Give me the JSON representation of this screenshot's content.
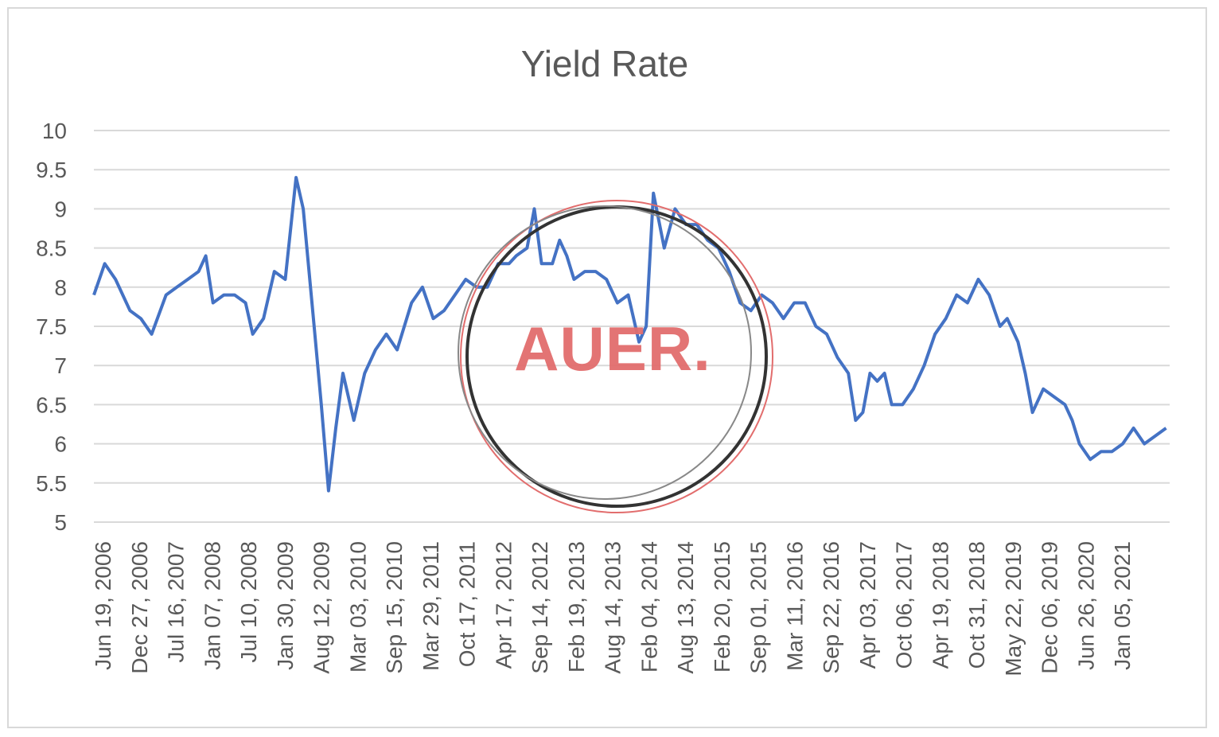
{
  "chart_data": {
    "type": "line",
    "title": "Yield Rate",
    "xlabel": "",
    "ylabel": "",
    "ylim": [
      5,
      10
    ],
    "yticks": [
      "10",
      "9.5",
      "9",
      "8.5",
      "8",
      "7.5",
      "7",
      "6.5",
      "6",
      "5.5",
      "5"
    ],
    "x_tick_labels": [
      "Jun 19, 2006",
      "Dec 27, 2006",
      "Jul 16, 2007",
      "Jan 07, 2008",
      "Jul 10, 2008",
      "Jan 30, 2009",
      "Aug 12, 2009",
      "Mar 03, 2010",
      "Sep 15, 2010",
      "Mar 29, 2011",
      "Oct 17, 2011",
      "Apr 17, 2012",
      "Sep 14, 2012",
      "Feb 19, 2013",
      "Aug 14, 2013",
      "Feb 04, 2014",
      "Aug 13, 2014",
      "Feb 20, 2015",
      "Sep 01, 2015",
      "Mar 11, 2016",
      "Sep 22, 2016",
      "Apr 03, 2017",
      "Oct 06, 2017",
      "Apr 19, 2018",
      "Oct 31, 2018",
      "May 22, 2019",
      "Dec 06, 2019",
      "Jun 26, 2020",
      "Jan 05, 2021"
    ],
    "grid": true,
    "legend": "none",
    "series": [
      {
        "color": "#4472c4",
        "points": [
          [
            0,
            7.9
          ],
          [
            0.3,
            8.3
          ],
          [
            0.6,
            8.1
          ],
          [
            1.0,
            7.7
          ],
          [
            1.3,
            7.6
          ],
          [
            1.6,
            7.4
          ],
          [
            2.0,
            7.9
          ],
          [
            2.3,
            8.0
          ],
          [
            2.6,
            8.1
          ],
          [
            2.9,
            8.2
          ],
          [
            3.1,
            8.4
          ],
          [
            3.3,
            7.8
          ],
          [
            3.6,
            7.9
          ],
          [
            3.9,
            7.9
          ],
          [
            4.2,
            7.8
          ],
          [
            4.4,
            7.4
          ],
          [
            4.7,
            7.6
          ],
          [
            5.0,
            8.2
          ],
          [
            5.3,
            8.1
          ],
          [
            5.6,
            9.4
          ],
          [
            5.8,
            9.0
          ],
          [
            6.1,
            7.5
          ],
          [
            6.3,
            6.5
          ],
          [
            6.5,
            5.4
          ],
          [
            6.7,
            6.2
          ],
          [
            6.9,
            6.9
          ],
          [
            7.2,
            6.3
          ],
          [
            7.5,
            6.9
          ],
          [
            7.8,
            7.2
          ],
          [
            8.1,
            7.4
          ],
          [
            8.4,
            7.2
          ],
          [
            8.8,
            7.8
          ],
          [
            9.1,
            8.0
          ],
          [
            9.4,
            7.6
          ],
          [
            9.7,
            7.7
          ],
          [
            10.0,
            7.9
          ],
          [
            10.3,
            8.1
          ],
          [
            10.6,
            8.0
          ],
          [
            10.9,
            8.0
          ],
          [
            11.2,
            8.3
          ],
          [
            11.5,
            8.3
          ],
          [
            11.7,
            8.4
          ],
          [
            12.0,
            8.5
          ],
          [
            12.2,
            9.0
          ],
          [
            12.4,
            8.3
          ],
          [
            12.7,
            8.3
          ],
          [
            12.9,
            8.6
          ],
          [
            13.1,
            8.4
          ],
          [
            13.3,
            8.1
          ],
          [
            13.6,
            8.2
          ],
          [
            13.9,
            8.2
          ],
          [
            14.2,
            8.1
          ],
          [
            14.5,
            7.8
          ],
          [
            14.8,
            7.9
          ],
          [
            15.1,
            7.3
          ],
          [
            15.3,
            7.5
          ],
          [
            15.5,
            9.2
          ],
          [
            15.8,
            8.5
          ],
          [
            16.1,
            9.0
          ],
          [
            16.4,
            8.8
          ],
          [
            16.7,
            8.8
          ],
          [
            17.0,
            8.6
          ],
          [
            17.3,
            8.5
          ],
          [
            17.6,
            8.2
          ],
          [
            17.9,
            7.8
          ],
          [
            18.2,
            7.7
          ],
          [
            18.5,
            7.9
          ],
          [
            18.8,
            7.8
          ],
          [
            19.1,
            7.6
          ],
          [
            19.4,
            7.8
          ],
          [
            19.7,
            7.8
          ],
          [
            20.0,
            7.5
          ],
          [
            20.3,
            7.4
          ],
          [
            20.6,
            7.1
          ],
          [
            20.9,
            6.9
          ],
          [
            21.1,
            6.3
          ],
          [
            21.3,
            6.4
          ],
          [
            21.5,
            6.9
          ],
          [
            21.7,
            6.8
          ],
          [
            21.9,
            6.9
          ],
          [
            22.1,
            6.5
          ],
          [
            22.4,
            6.5
          ],
          [
            22.7,
            6.7
          ],
          [
            23.0,
            7.0
          ],
          [
            23.3,
            7.4
          ],
          [
            23.6,
            7.6
          ],
          [
            23.9,
            7.9
          ],
          [
            24.2,
            7.8
          ],
          [
            24.5,
            8.1
          ],
          [
            24.8,
            7.9
          ],
          [
            25.1,
            7.5
          ],
          [
            25.3,
            7.6
          ],
          [
            25.6,
            7.3
          ],
          [
            25.8,
            6.9
          ],
          [
            26.0,
            6.4
          ],
          [
            26.3,
            6.7
          ],
          [
            26.6,
            6.6
          ],
          [
            26.9,
            6.5
          ],
          [
            27.1,
            6.3
          ],
          [
            27.3,
            6.0
          ],
          [
            27.6,
            5.8
          ],
          [
            27.9,
            5.9
          ],
          [
            28.2,
            5.9
          ],
          [
            28.5,
            6.0
          ],
          [
            28.8,
            6.2
          ],
          [
            29.1,
            6.0
          ],
          [
            29.4,
            6.1
          ],
          [
            29.7,
            6.2
          ]
        ]
      }
    ]
  },
  "watermark": {
    "text": "AUER."
  }
}
